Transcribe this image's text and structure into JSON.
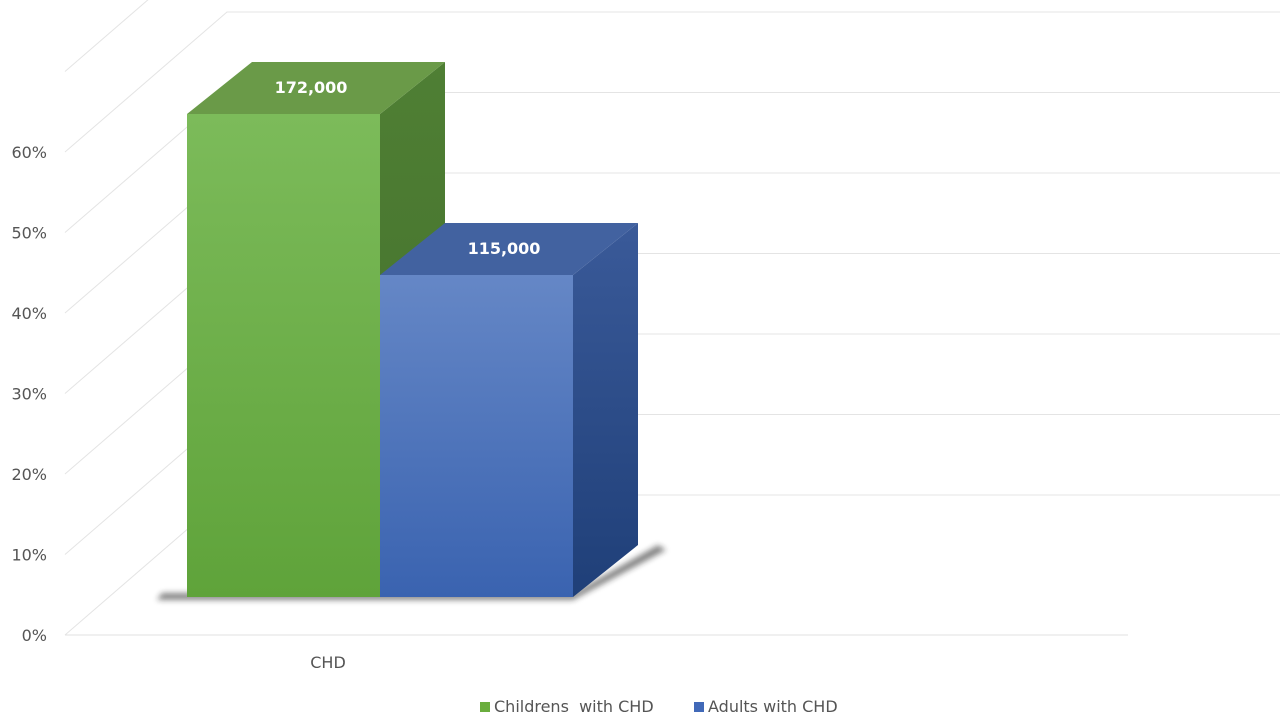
{
  "chart_data": {
    "type": "bar",
    "categories": [
      "CHD"
    ],
    "series": [
      {
        "name": "Childrens  with CHD",
        "values": [
          0.6
        ],
        "data_label": "172,000",
        "color": "#6aad3d"
      },
      {
        "name": "Adults with CHD",
        "values": [
          0.4
        ],
        "data_label": "115,000",
        "color": "#4169b8"
      }
    ],
    "ylim": [
      0,
      0.7
    ],
    "yticks": [
      0,
      0.1,
      0.2,
      0.3,
      0.4,
      0.5,
      0.6
    ],
    "ytick_labels": [
      "0%",
      "10%",
      "20%",
      "30%",
      "40%",
      "50%",
      "60%"
    ],
    "title": "",
    "xlabel": "",
    "ylabel": "",
    "grid": true,
    "legend_position": "bottom",
    "style": "3d-column"
  }
}
